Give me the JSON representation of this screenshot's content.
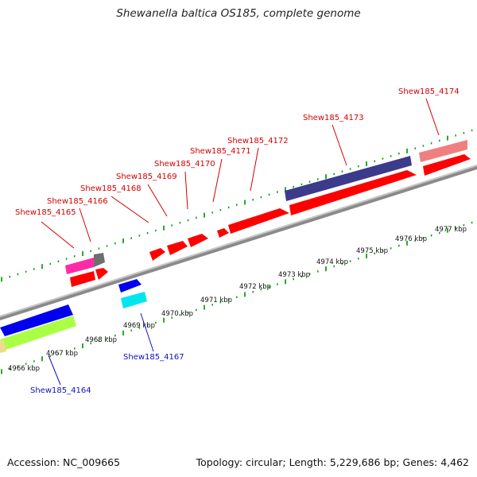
{
  "title": "Shewanella baltica OS185, complete genome",
  "footer": {
    "accession": "Accession: NC_009665",
    "topology": "Topology: circular; Length: 5,229,686 bp; Genes: 4,462"
  },
  "colors": {
    "forward_label": "#d40000",
    "reverse_label": "#1010c0",
    "backbone": "#8a8a8a",
    "tick": "#11a011"
  },
  "kbp_labels": [
    "4966 kbp",
    "4967 kbp",
    "4968 kbp",
    "4969 kbp",
    "4970 kbp",
    "4971 kbp",
    "4972 kbp",
    "4973 kbp",
    "4974 kbp",
    "4975 kbp",
    "4976 kbp",
    "4977 kbp"
  ],
  "gene_labels": [
    {
      "text": "Shew185_4165",
      "strand": "forward"
    },
    {
      "text": "Shew185_4166",
      "strand": "forward"
    },
    {
      "text": "Shew185_4168",
      "strand": "forward"
    },
    {
      "text": "Shew185_4169",
      "strand": "forward"
    },
    {
      "text": "Shew185_4170",
      "strand": "forward"
    },
    {
      "text": "Shew185_4171",
      "strand": "forward"
    },
    {
      "text": "Shew185_4172",
      "strand": "forward"
    },
    {
      "text": "Shew185_4173",
      "strand": "forward"
    },
    {
      "text": "Shew185_4174",
      "strand": "forward"
    },
    {
      "text": "Shew185_4167",
      "strand": "reverse"
    },
    {
      "text": "Shew185_4164",
      "strand": "reverse"
    }
  ]
}
